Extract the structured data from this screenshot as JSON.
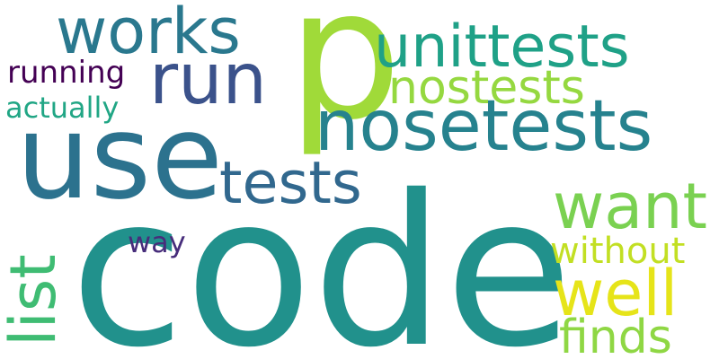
{
  "words": [
    {
      "id": "code",
      "text": "code",
      "color": "#21918c",
      "rotated": false
    },
    {
      "id": "p",
      "text": "p",
      "color": "#a0da39",
      "rotated": false
    },
    {
      "id": "use",
      "text": "use",
      "color": "#2c728e",
      "rotated": false
    },
    {
      "id": "nosetests",
      "text": "nosetests",
      "color": "#26828e",
      "rotated": false
    },
    {
      "id": "run",
      "text": "run",
      "color": "#3b528b",
      "rotated": false
    },
    {
      "id": "unittests",
      "text": "unittests",
      "color": "#1fa187",
      "rotated": false
    },
    {
      "id": "works",
      "text": "works",
      "color": "#2a788e",
      "rotated": false
    },
    {
      "id": "tests",
      "text": "tests",
      "color": "#31688e",
      "rotated": false
    },
    {
      "id": "want",
      "text": "want",
      "color": "#7ad151",
      "rotated": false
    },
    {
      "id": "nostests",
      "text": "nostests",
      "color": "#95d840",
      "rotated": false
    },
    {
      "id": "well",
      "text": "well",
      "color": "#e6e419",
      "rotated": false
    },
    {
      "id": "list",
      "text": "list",
      "color": "#3fbc73",
      "rotated": true
    },
    {
      "id": "finds",
      "text": "finds",
      "color": "#8fd744",
      "rotated": false
    },
    {
      "id": "without",
      "text": "without",
      "color": "#c2df23",
      "rotated": false
    },
    {
      "id": "running",
      "text": "running",
      "color": "#440154",
      "rotated": false
    },
    {
      "id": "actually",
      "text": "actually",
      "color": "#21a685",
      "rotated": false
    },
    {
      "id": "way",
      "text": "way",
      "color": "#472d7b",
      "rotated": false
    }
  ]
}
